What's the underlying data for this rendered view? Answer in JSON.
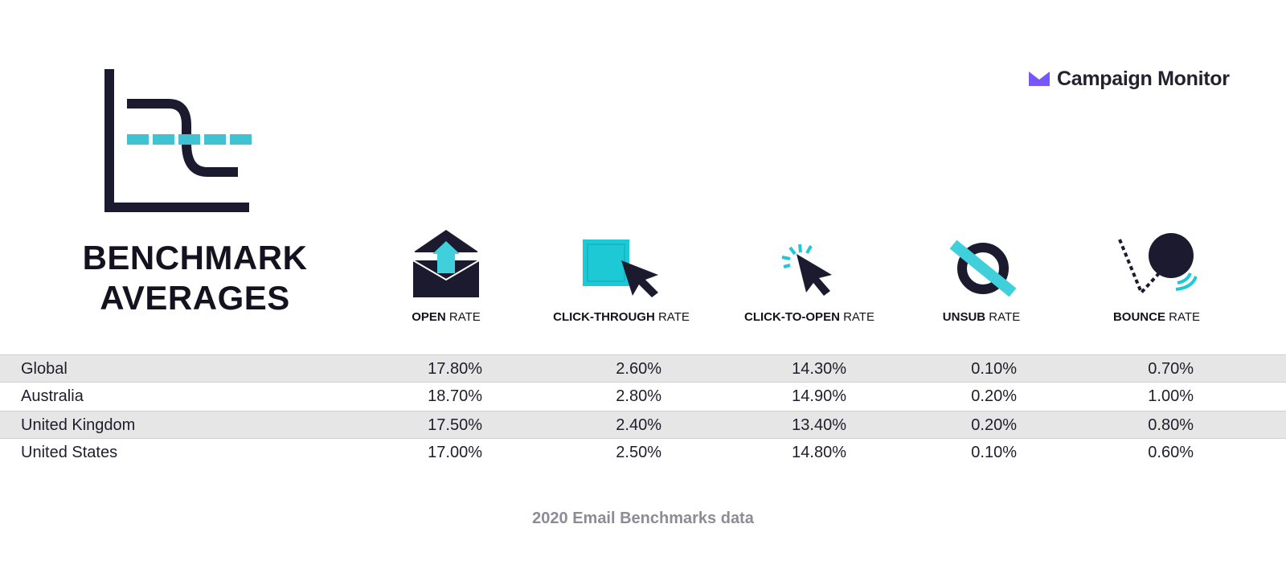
{
  "title": {
    "line1": "BENCHMARK",
    "line2": "AVERAGES"
  },
  "brand": {
    "name": "Campaign Monitor",
    "icon": "envelope-logo-icon",
    "color": "#7856ff"
  },
  "colors": {
    "dark": "#1c1a2e",
    "accent": "#3fd0dc",
    "row_shade": "#e6e6e6",
    "footer": "#8d8b96"
  },
  "metrics": [
    {
      "bold": "OPEN",
      "rest": " RATE",
      "icon": "open-envelope-icon"
    },
    {
      "bold": "CLICK-THROUGH",
      "rest": " RATE",
      "icon": "click-box-cursor-icon"
    },
    {
      "bold": "CLICK-TO-OPEN",
      "rest": " RATE",
      "icon": "cursor-click-icon"
    },
    {
      "bold": "UNSUB",
      "rest": " RATE",
      "icon": "unsubscribe-icon"
    },
    {
      "bold": "BOUNCE",
      "rest": " RATE",
      "icon": "bounce-ball-icon"
    }
  ],
  "chart_data": {
    "type": "table",
    "columns": [
      "OPEN RATE",
      "CLICK-THROUGH RATE",
      "CLICK-TO-OPEN RATE",
      "UNSUB RATE",
      "BOUNCE RATE"
    ],
    "rows": [
      {
        "region": "Global",
        "values": [
          "17.80%",
          "2.60%",
          "14.30%",
          "0.10%",
          "0.70%"
        ]
      },
      {
        "region": "Australia",
        "values": [
          "18.70%",
          "2.80%",
          "14.90%",
          "0.20%",
          "1.00%"
        ]
      },
      {
        "region": "United Kingdom",
        "values": [
          "17.50%",
          "2.40%",
          "13.40%",
          "0.20%",
          "0.80%"
        ]
      },
      {
        "region": "United States",
        "values": [
          "17.00%",
          "2.50%",
          "14.80%",
          "0.10%",
          "0.60%"
        ]
      }
    ]
  },
  "footer": "2020 Email Benchmarks data"
}
